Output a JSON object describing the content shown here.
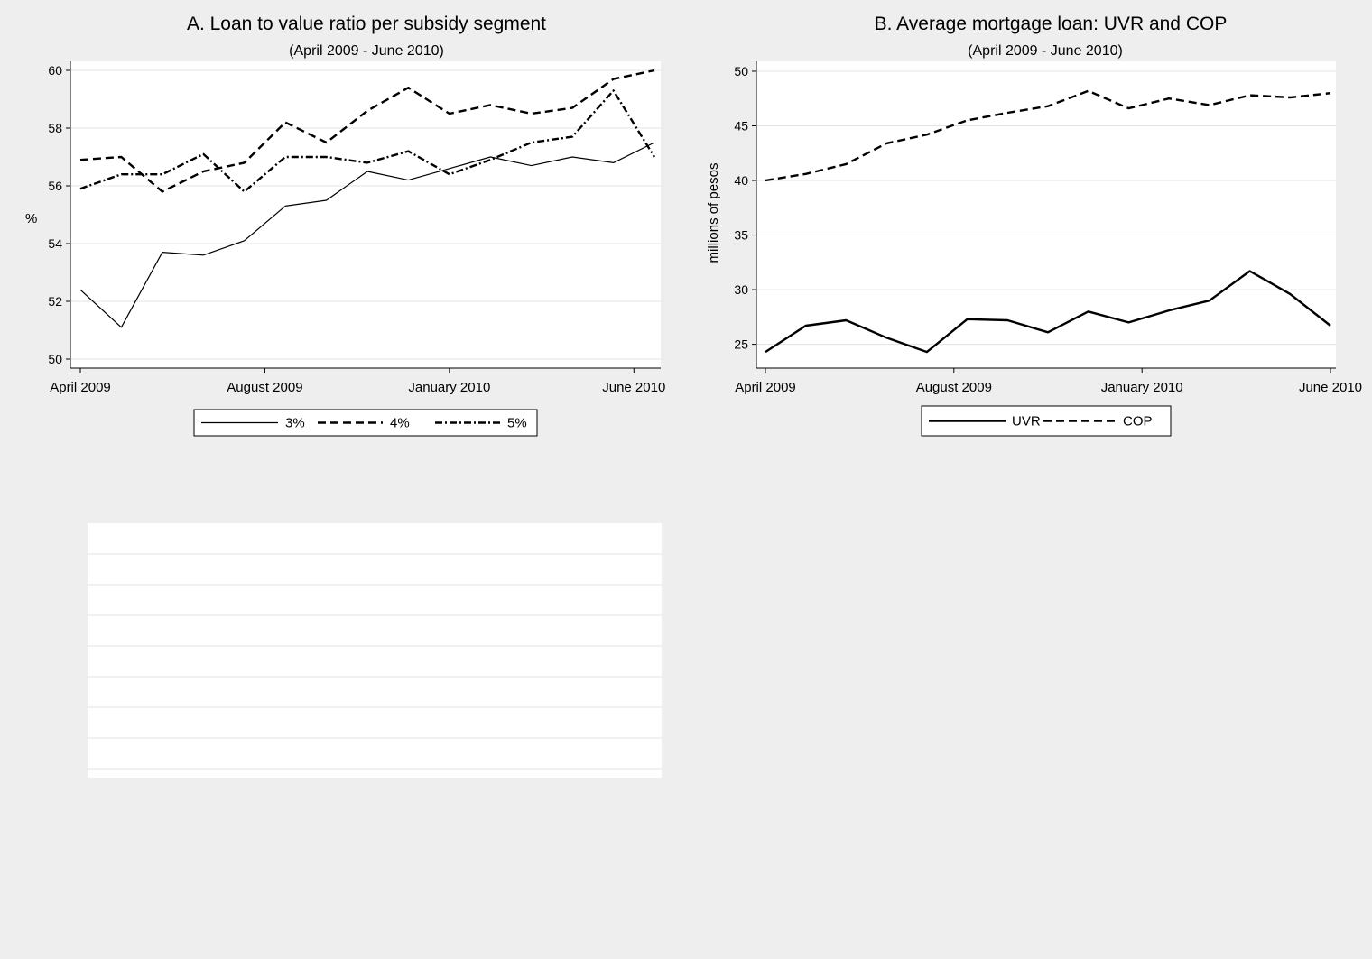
{
  "colors": {
    "outer_background": "#eeeeee",
    "plot_background": "#ffffff",
    "gridline": "#e3e3e3",
    "line": "#000000"
  },
  "chart_data": [
    {
      "type": "line",
      "title": "A. Loan to value ratio per subsidy segment",
      "subtitle": "(April 2009 - June 2010)",
      "xlabel": "",
      "ylabel": "%",
      "x": [
        0,
        1,
        2,
        3,
        4,
        5,
        6,
        7,
        8,
        9,
        10,
        11,
        12,
        13,
        14
      ],
      "xticks": [
        {
          "x": 0,
          "label": "April 2009"
        },
        {
          "x": 4.5,
          "label": "August 2009"
        },
        {
          "x": 9,
          "label": "January 2010"
        },
        {
          "x": 13.5,
          "label": "June 2010"
        }
      ],
      "ylim": [
        50,
        60
      ],
      "yticks": [
        50,
        52,
        54,
        56,
        58,
        60
      ],
      "grid": true,
      "legend_position": "bottom",
      "series": [
        {
          "name": "3%",
          "style": "solid-thin",
          "values": [
            52.4,
            51.1,
            53.7,
            53.6,
            54.1,
            55.3,
            55.5,
            56.5,
            56.2,
            56.6,
            57.0,
            56.7,
            57.0,
            56.8,
            57.5
          ]
        },
        {
          "name": "4%",
          "style": "dash",
          "values": [
            56.9,
            57.0,
            55.8,
            56.5,
            56.8,
            58.2,
            57.5,
            58.6,
            59.4,
            58.5,
            58.8,
            58.5,
            58.7,
            59.7,
            60.0
          ]
        },
        {
          "name": "5%",
          "style": "dashdot",
          "values": [
            55.9,
            56.4,
            56.4,
            57.1,
            55.8,
            57.0,
            57.0,
            56.8,
            57.2,
            56.4,
            56.9,
            57.5,
            57.7,
            59.3,
            57.0
          ]
        }
      ]
    },
    {
      "type": "line",
      "title": "B. Average mortgage loan: UVR and COP",
      "subtitle": "(April 2009 - June 2010)",
      "xlabel": "",
      "ylabel": "millions of pesos",
      "x": [
        0,
        1,
        2,
        3,
        4,
        5,
        6,
        7,
        8,
        9,
        10,
        11,
        12,
        13,
        14
      ],
      "xticks": [
        {
          "x": 0,
          "label": "April 2009"
        },
        {
          "x": 4.67,
          "label": "August 2009"
        },
        {
          "x": 9.33,
          "label": "January 2010"
        },
        {
          "x": 14,
          "label": "June 2010"
        }
      ],
      "ylim": [
        24,
        50.5
      ],
      "yticks": [
        25,
        30,
        35,
        40,
        45,
        50
      ],
      "grid": true,
      "legend_position": "bottom",
      "series": [
        {
          "name": "UVR",
          "style": "solid-thick",
          "values": [
            24.3,
            26.7,
            27.2,
            25.6,
            24.3,
            27.3,
            27.2,
            26.1,
            28.0,
            27.0,
            28.1,
            29.0,
            31.7,
            29.6,
            26.7
          ]
        },
        {
          "name": "COP",
          "style": "dash",
          "values": [
            40.0,
            40.6,
            41.5,
            43.4,
            44.2,
            45.5,
            46.2,
            46.8,
            48.2,
            46.6,
            47.5,
            46.9,
            47.8,
            47.6,
            48.0
          ]
        }
      ]
    }
  ],
  "blank_panel": {
    "rows": 8
  }
}
